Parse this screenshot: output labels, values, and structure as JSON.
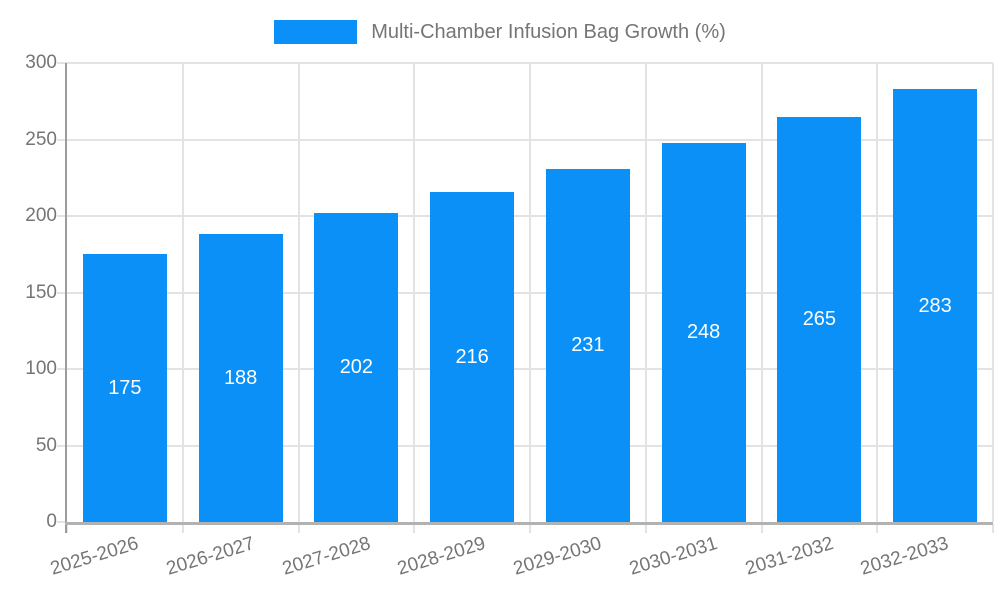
{
  "chart_data": {
    "type": "bar",
    "title": "Multi-Chamber Infusion Bag Growth (%)",
    "legend": {
      "entries": [
        "Multi-Chamber Infusion Bag Growth (%)"
      ],
      "position": "top-center"
    },
    "categories": [
      "2025-2026",
      "2026-2027",
      "2027-2028",
      "2028-2029",
      "2029-2030",
      "2030-2031",
      "2031-2032",
      "2032-2033"
    ],
    "series": [
      {
        "name": "Multi-Chamber Infusion Bag Growth (%)",
        "values": [
          175,
          188,
          202,
          216,
          231,
          248,
          265,
          283
        ]
      }
    ],
    "value_labels": [
      "175",
      "188",
      "202",
      "216",
      "231",
      "248",
      "265",
      "283"
    ],
    "xlabel": "",
    "ylabel": "",
    "ylim": [
      0,
      300
    ],
    "yticks": [
      0,
      50,
      100,
      150,
      200,
      250,
      300
    ],
    "grid": true,
    "x_tick_rotation_deg": -17,
    "colors": {
      "bar": "#0a90f6",
      "value_label": "#ffffff",
      "axis_text": "#757575",
      "legend_text": "#757575",
      "grid": "#e3e3e3",
      "x_axis_line": "#b2b2b2",
      "y_axis_line": "#9c9c9c",
      "background": "#ffffff"
    }
  }
}
